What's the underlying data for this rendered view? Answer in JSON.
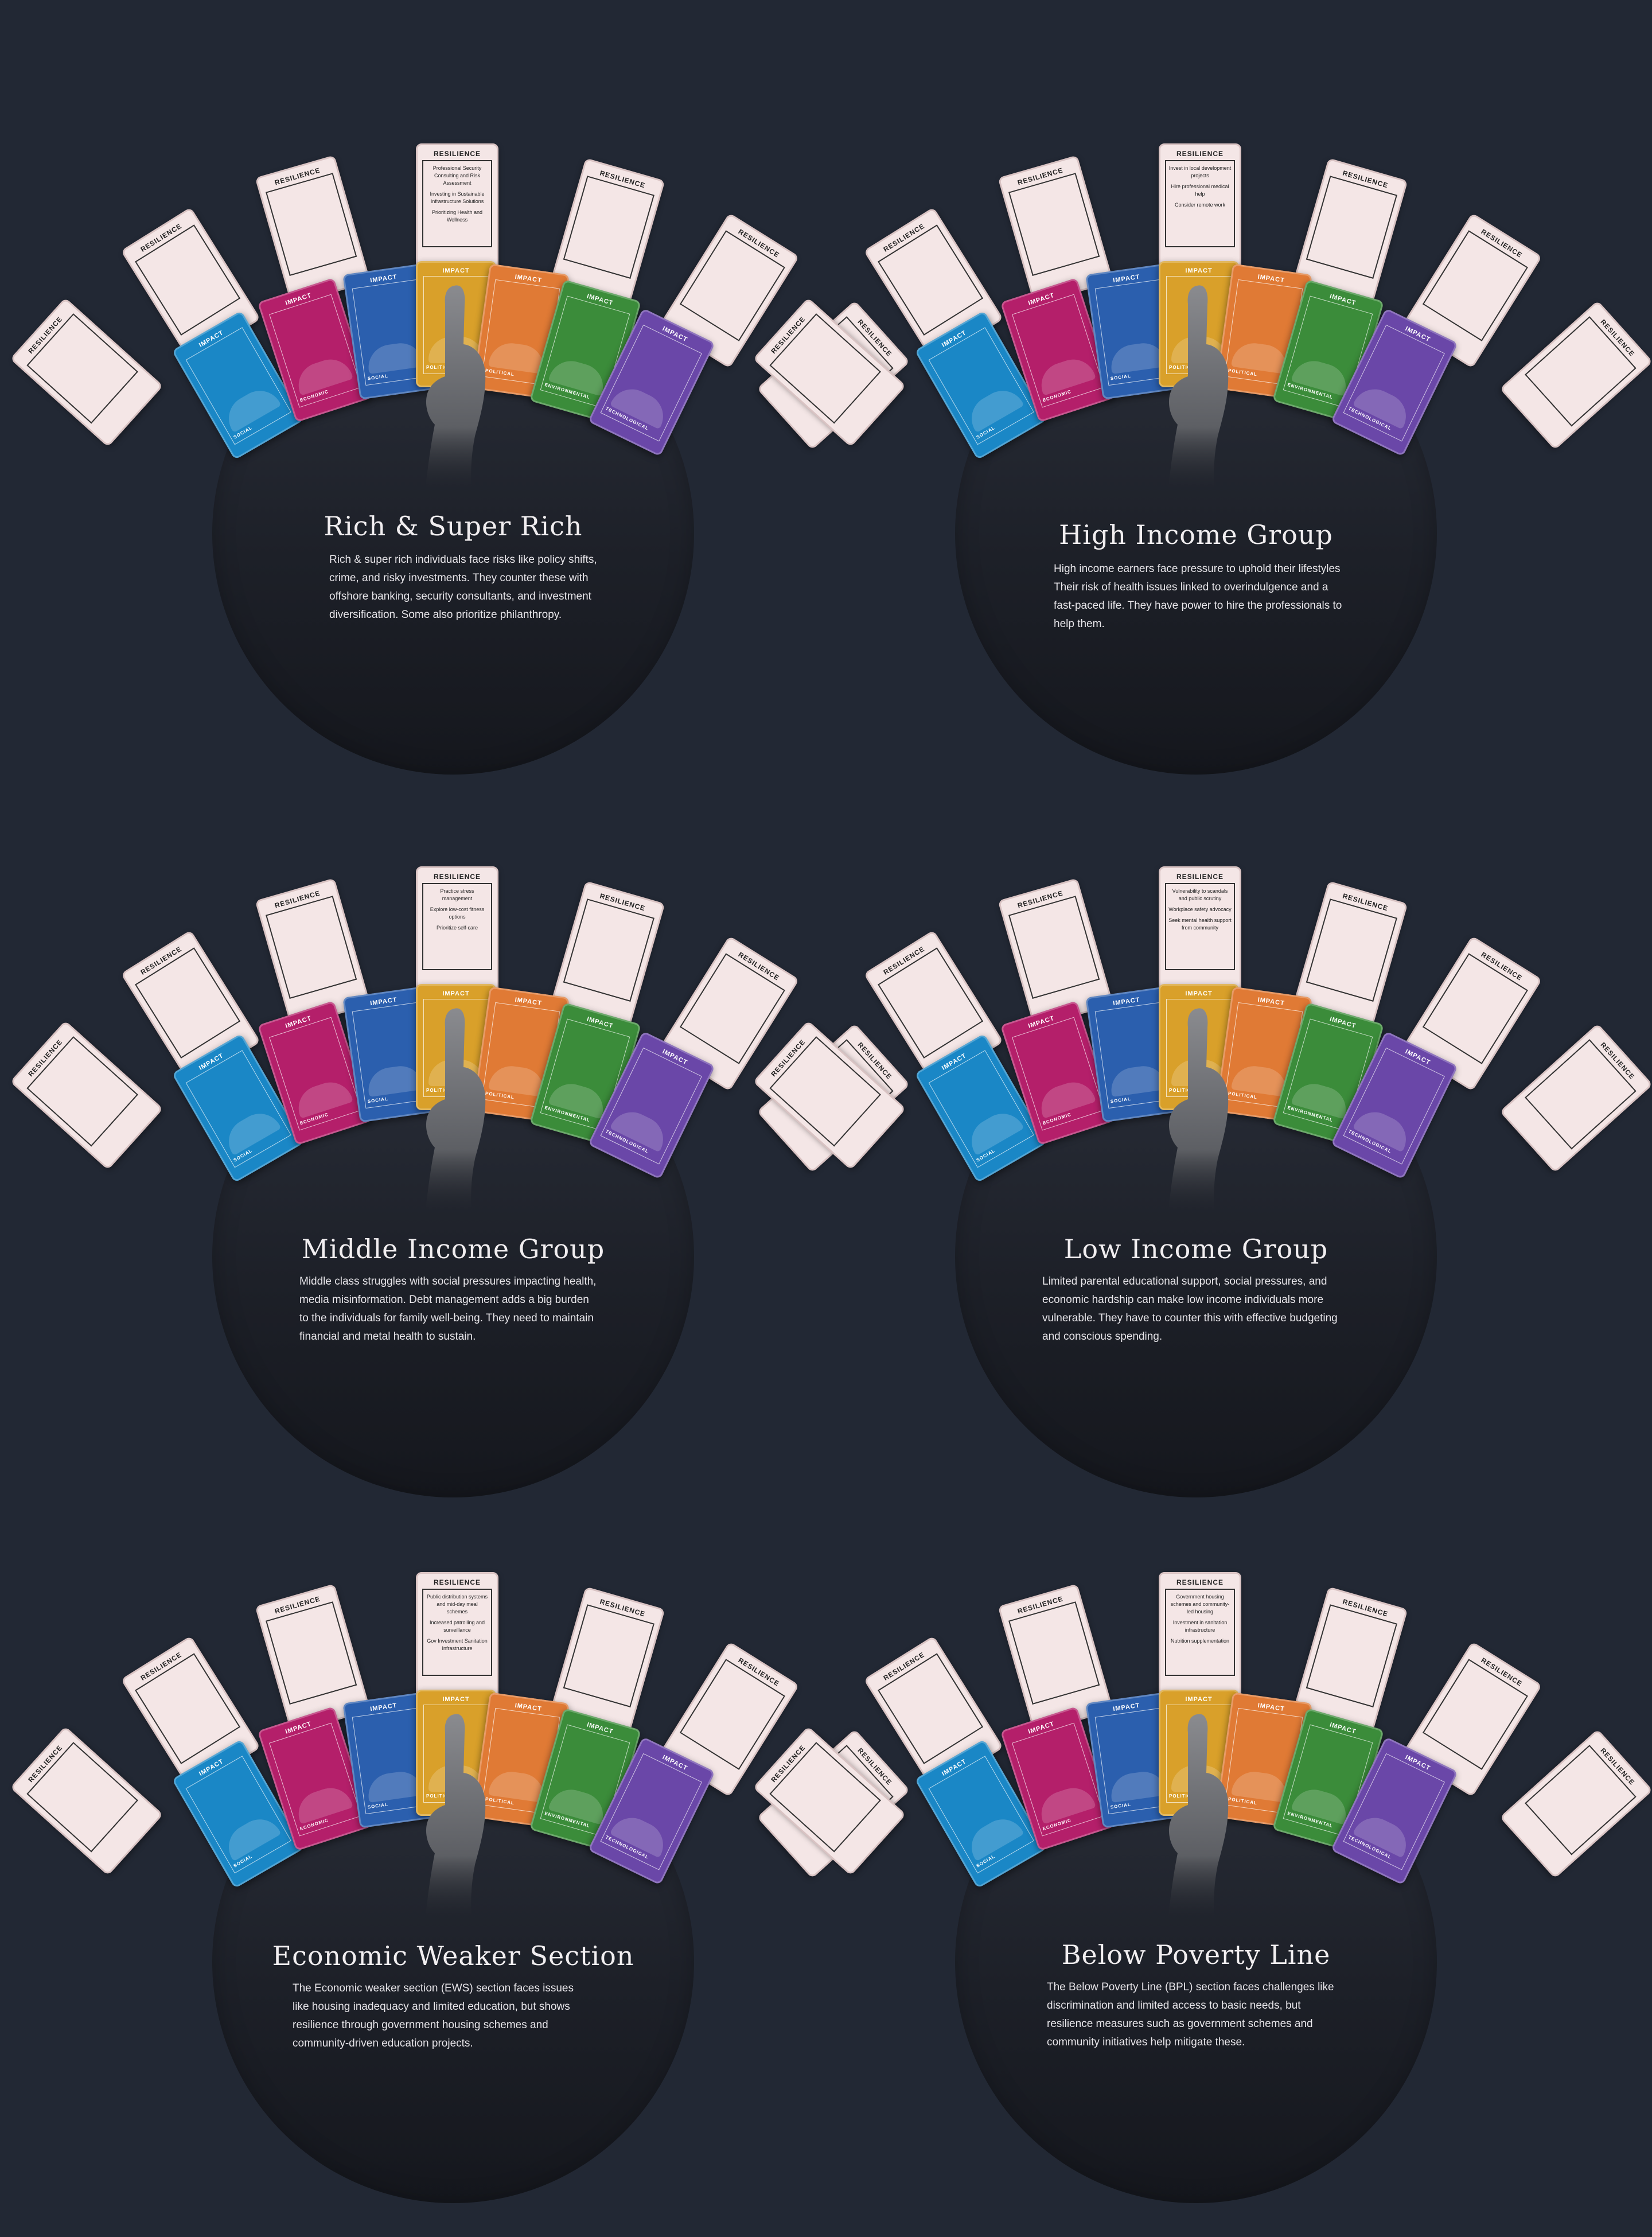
{
  "card_titles": {
    "resilience": "RESILIENCE",
    "impact": "IMPACT",
    "social": "SOCIAL",
    "economic": "ECONOMIC",
    "political": "POLITICAL",
    "environmental": "ENVIRONMENTAL",
    "technological": "TECHNOLOGICAL"
  },
  "colors": {
    "background": "#222834",
    "blue": "#1a87c6",
    "magenta": "#b41f6a",
    "navy": "#2b5fae",
    "gold": "#d9a02a",
    "orange": "#e07a35",
    "green": "#3b8c3a",
    "purple": "#6a47a8"
  },
  "panels": [
    {
      "title": "Rich & Super Rich",
      "description": "Rich & super rich individuals face risks like policy shifts, crime, and risky investments. They counter these with offshore banking, security consultants, and investment diversification. Some also prioritize philanthropy.",
      "resilience_items": [
        "Professional Security Consulting and Risk Assessment",
        "Investing in Sustainable Infrastructure Solutions",
        "Prioritizing Health and Wellness"
      ]
    },
    {
      "title": "High Income Group",
      "description": "High income earners face pressure to uphold their lifestyles Their risk of health issues linked to overindulgence and a fast-paced life. They have power to hire the professionals to help them.",
      "resilience_items": [
        "Invest in local development projects",
        "Hire professional medical help",
        "Consider remote work"
      ]
    },
    {
      "title": "Middle Income Group",
      "description": "Middle class struggles with social pressures impacting health, media misinformation. Debt management adds a big burden to the individuals for family well-being. They need to maintain financial and metal health to sustain.",
      "resilience_items": [
        "Practice stress management",
        "Explore low-cost fitness options",
        "Prioritize self-care"
      ]
    },
    {
      "title": "Low Income Group",
      "description": "Limited parental educational support, social pressures, and economic hardship can make low income individuals more vulnerable. They have to counter this with effective budgeting and conscious spending.",
      "resilience_items": [
        "Vulnerability to scandals and public scrutiny",
        "Workplace safety advocacy",
        "Seek mental health support from community"
      ]
    },
    {
      "title": "Economic Weaker Section",
      "description": "The Economic weaker section (EWS) section faces issues like housing inadequacy and limited education, but shows resilience through government housing schemes and community-driven education projects.",
      "resilience_items": [
        "Public distribution systems and mid-day meal schemes",
        "Increased patrolling and surveillance",
        "Gov Investment Sanitation Infrastructure"
      ]
    },
    {
      "title": "Below Poverty Line",
      "description": "The Below Poverty Line (BPL) section faces challenges like discrimination and limited access to basic needs, but resilience measures such as government schemes and community initiatives help mitigate these.",
      "resilience_items": [
        "Government housing schemes and community-led housing",
        "Investment in sanitation infrastructure",
        "Nutrition supplementation"
      ]
    }
  ]
}
